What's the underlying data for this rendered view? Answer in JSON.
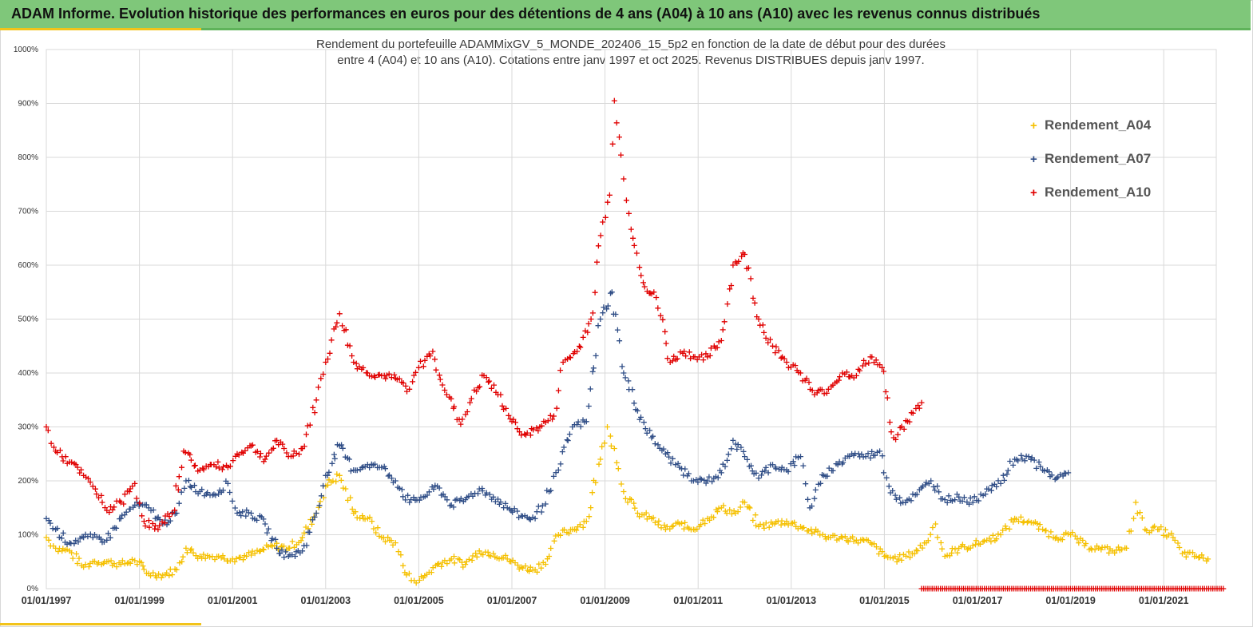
{
  "header": {
    "title": "ADAM Informe. Evolution historique des performances en euros pour des détentions de 4 ans (A04) à 10 ans (A10) avec les revenus connus distribués"
  },
  "colors": {
    "banner": "#7fc77a",
    "accent": "#f2c31a",
    "A04": "#f5c000",
    "A07": "#2f4d86",
    "A10": "#e00000",
    "grid": "#d9d9d9"
  },
  "chart_data": {
    "type": "scatter",
    "title_line1": "Rendement du portefeuille ADAMMixGV_5_MONDE_202406_15_5p2 en fonction de la date de début pour des durées",
    "title_line2": "entre 4 (A04) et 10 ans (A10). Cotations entre janv 1997 et oct 2025. Revenus DISTRIBUES depuis janv 1997.",
    "x_range": [
      1997.0,
      2022.3
    ],
    "ylim": [
      0,
      1000
    ],
    "y_ticks": [
      "0%",
      "100%",
      "200%",
      "300%",
      "400%",
      "500%",
      "600%",
      "700%",
      "800%",
      "900%",
      "1000%"
    ],
    "x_ticks": [
      {
        "year": 1997,
        "label": "01/01/1997"
      },
      {
        "year": 1999,
        "label": "01/01/1999"
      },
      {
        "year": 2001,
        "label": "01/01/2001"
      },
      {
        "year": 2003,
        "label": "01/01/2003"
      },
      {
        "year": 2005,
        "label": "01/01/2005"
      },
      {
        "year": 2007,
        "label": "01/01/2007"
      },
      {
        "year": 2009,
        "label": "01/01/2009"
      },
      {
        "year": 2011,
        "label": "01/01/2011"
      },
      {
        "year": 2013,
        "label": "01/01/2013"
      },
      {
        "year": 2015,
        "label": "01/01/2015"
      },
      {
        "year": 2017,
        "label": "01/01/2017"
      },
      {
        "year": 2019,
        "label": "01/01/2019"
      },
      {
        "year": 2021,
        "label": "01/01/2021"
      }
    ],
    "grid": true,
    "marker": "+",
    "legend_position": "top-right",
    "series": [
      {
        "name": "Rendement_A04",
        "color": "#f5c000",
        "points": [
          [
            1997.0,
            95
          ],
          [
            1997.2,
            75
          ],
          [
            1997.5,
            70
          ],
          [
            1997.8,
            40
          ],
          [
            1998.0,
            50
          ],
          [
            1998.3,
            50
          ],
          [
            1998.6,
            45
          ],
          [
            1998.9,
            52
          ],
          [
            1999.2,
            28
          ],
          [
            1999.5,
            25
          ],
          [
            1999.8,
            35
          ],
          [
            2000.0,
            75
          ],
          [
            2000.3,
            60
          ],
          [
            2000.7,
            60
          ],
          [
            2001.0,
            55
          ],
          [
            2001.3,
            60
          ],
          [
            2001.6,
            70
          ],
          [
            2001.9,
            80
          ],
          [
            2002.2,
            75
          ],
          [
            2002.5,
            95
          ],
          [
            2002.8,
            140
          ],
          [
            2003.0,
            190
          ],
          [
            2003.3,
            210
          ],
          [
            2003.6,
            140
          ],
          [
            2003.9,
            130
          ],
          [
            2004.2,
            95
          ],
          [
            2004.5,
            85
          ],
          [
            2004.7,
            30
          ],
          [
            2004.9,
            15
          ],
          [
            2005.1,
            20
          ],
          [
            2005.4,
            45
          ],
          [
            2005.7,
            55
          ],
          [
            2006.0,
            45
          ],
          [
            2006.3,
            70
          ],
          [
            2006.6,
            65
          ],
          [
            2006.9,
            55
          ],
          [
            2007.2,
            40
          ],
          [
            2007.5,
            35
          ],
          [
            2007.8,
            60
          ],
          [
            2008.0,
            100
          ],
          [
            2008.3,
            110
          ],
          [
            2008.6,
            125
          ],
          [
            2008.9,
            240
          ],
          [
            2009.05,
            300
          ],
          [
            2009.2,
            260
          ],
          [
            2009.4,
            180
          ],
          [
            2009.7,
            140
          ],
          [
            2010.0,
            130
          ],
          [
            2010.3,
            110
          ],
          [
            2010.6,
            120
          ],
          [
            2010.9,
            110
          ],
          [
            2011.2,
            130
          ],
          [
            2011.5,
            150
          ],
          [
            2011.8,
            140
          ],
          [
            2012.0,
            160
          ],
          [
            2012.3,
            115
          ],
          [
            2012.6,
            120
          ],
          [
            2012.9,
            125
          ],
          [
            2013.2,
            115
          ],
          [
            2013.5,
            105
          ],
          [
            2013.8,
            95
          ],
          [
            2014.1,
            95
          ],
          [
            2014.4,
            90
          ],
          [
            2014.7,
            85
          ],
          [
            2015.0,
            60
          ],
          [
            2015.3,
            55
          ],
          [
            2015.6,
            65
          ],
          [
            2015.9,
            85
          ],
          [
            2016.1,
            120
          ],
          [
            2016.3,
            60
          ],
          [
            2016.6,
            75
          ],
          [
            2016.9,
            80
          ],
          [
            2017.2,
            90
          ],
          [
            2017.5,
            100
          ],
          [
            2017.8,
            130
          ],
          [
            2018.1,
            125
          ],
          [
            2018.4,
            110
          ],
          [
            2018.7,
            95
          ],
          [
            2019.0,
            100
          ],
          [
            2019.3,
            80
          ],
          [
            2019.6,
            75
          ],
          [
            2019.9,
            70
          ],
          [
            2020.2,
            75
          ],
          [
            2020.4,
            160
          ],
          [
            2020.6,
            110
          ],
          [
            2020.9,
            110
          ],
          [
            2021.2,
            95
          ],
          [
            2021.4,
            65
          ],
          [
            2021.7,
            60
          ],
          [
            2021.95,
            55
          ]
        ]
      },
      {
        "name": "Rendement_A07",
        "color": "#2f4d86",
        "points": [
          [
            1997.0,
            130
          ],
          [
            1997.2,
            110
          ],
          [
            1997.5,
            85
          ],
          [
            1997.8,
            95
          ],
          [
            1998.0,
            95
          ],
          [
            1998.3,
            90
          ],
          [
            1998.6,
            130
          ],
          [
            1998.9,
            155
          ],
          [
            1999.2,
            150
          ],
          [
            1999.5,
            120
          ],
          [
            1999.8,
            140
          ],
          [
            2000.0,
            200
          ],
          [
            2000.3,
            180
          ],
          [
            2000.6,
            175
          ],
          [
            2000.9,
            195
          ],
          [
            2001.1,
            140
          ],
          [
            2001.4,
            140
          ],
          [
            2001.7,
            120
          ],
          [
            2001.95,
            75
          ],
          [
            2002.2,
            60
          ],
          [
            2002.5,
            70
          ],
          [
            2002.8,
            140
          ],
          [
            2003.0,
            210
          ],
          [
            2003.3,
            265
          ],
          [
            2003.6,
            220
          ],
          [
            2003.9,
            230
          ],
          [
            2004.2,
            225
          ],
          [
            2004.5,
            200
          ],
          [
            2004.8,
            160
          ],
          [
            2005.1,
            170
          ],
          [
            2005.4,
            190
          ],
          [
            2005.7,
            155
          ],
          [
            2006.0,
            165
          ],
          [
            2006.3,
            185
          ],
          [
            2006.6,
            170
          ],
          [
            2006.9,
            150
          ],
          [
            2007.2,
            135
          ],
          [
            2007.5,
            130
          ],
          [
            2007.8,
            180
          ],
          [
            2008.0,
            220
          ],
          [
            2008.3,
            300
          ],
          [
            2008.6,
            310
          ],
          [
            2008.9,
            500
          ],
          [
            2009.15,
            550
          ],
          [
            2009.4,
            400
          ],
          [
            2009.7,
            330
          ],
          [
            2010.0,
            280
          ],
          [
            2010.3,
            250
          ],
          [
            2010.6,
            225
          ],
          [
            2010.9,
            200
          ],
          [
            2011.2,
            200
          ],
          [
            2011.5,
            215
          ],
          [
            2011.75,
            275
          ],
          [
            2012.0,
            245
          ],
          [
            2012.3,
            205
          ],
          [
            2012.6,
            230
          ],
          [
            2012.9,
            220
          ],
          [
            2013.2,
            245
          ],
          [
            2013.4,
            150
          ],
          [
            2013.7,
            210
          ],
          [
            2014.0,
            230
          ],
          [
            2014.3,
            250
          ],
          [
            2014.6,
            245
          ],
          [
            2014.9,
            255
          ],
          [
            2015.1,
            190
          ],
          [
            2015.4,
            160
          ],
          [
            2015.7,
            175
          ],
          [
            2016.0,
            200
          ],
          [
            2016.3,
            165
          ],
          [
            2016.6,
            170
          ],
          [
            2016.9,
            160
          ],
          [
            2017.2,
            185
          ],
          [
            2017.5,
            195
          ],
          [
            2017.8,
            240
          ],
          [
            2018.1,
            245
          ],
          [
            2018.4,
            220
          ],
          [
            2018.7,
            205
          ],
          [
            2018.95,
            215
          ]
        ]
      },
      {
        "name": "Rendement_A10",
        "color": "#e00000",
        "points": [
          [
            1997.0,
            300
          ],
          [
            1997.2,
            255
          ],
          [
            1997.5,
            235
          ],
          [
            1997.8,
            210
          ],
          [
            1998.0,
            190
          ],
          [
            1998.3,
            145
          ],
          [
            1998.6,
            160
          ],
          [
            1998.9,
            195
          ],
          [
            1999.1,
            125
          ],
          [
            1999.4,
            110
          ],
          [
            1999.7,
            140
          ],
          [
            1999.95,
            255
          ],
          [
            2000.3,
            220
          ],
          [
            2000.6,
            230
          ],
          [
            2000.9,
            225
          ],
          [
            2001.1,
            250
          ],
          [
            2001.4,
            265
          ],
          [
            2001.7,
            240
          ],
          [
            2001.95,
            275
          ],
          [
            2002.2,
            245
          ],
          [
            2002.5,
            260
          ],
          [
            2002.8,
            350
          ],
          [
            2003.0,
            420
          ],
          [
            2003.3,
            510
          ],
          [
            2003.6,
            420
          ],
          [
            2003.9,
            400
          ],
          [
            2004.2,
            395
          ],
          [
            2004.5,
            390
          ],
          [
            2004.8,
            370
          ],
          [
            2005.0,
            410
          ],
          [
            2005.3,
            440
          ],
          [
            2005.6,
            360
          ],
          [
            2005.9,
            305
          ],
          [
            2006.1,
            345
          ],
          [
            2006.4,
            395
          ],
          [
            2006.7,
            360
          ],
          [
            2007.0,
            310
          ],
          [
            2007.3,
            285
          ],
          [
            2007.6,
            300
          ],
          [
            2007.9,
            320
          ],
          [
            2008.1,
            420
          ],
          [
            2008.4,
            440
          ],
          [
            2008.7,
            500
          ],
          [
            2008.95,
            680
          ],
          [
            2009.1,
            730
          ],
          [
            2009.2,
            905
          ],
          [
            2009.4,
            760
          ],
          [
            2009.6,
            650
          ],
          [
            2009.85,
            560
          ],
          [
            2010.1,
            540
          ],
          [
            2010.4,
            420
          ],
          [
            2010.7,
            440
          ],
          [
            2010.9,
            430
          ],
          [
            2011.2,
            430
          ],
          [
            2011.5,
            460
          ],
          [
            2011.75,
            600
          ],
          [
            2012.0,
            620
          ],
          [
            2012.3,
            500
          ],
          [
            2012.6,
            450
          ],
          [
            2012.9,
            420
          ],
          [
            2013.2,
            400
          ],
          [
            2013.5,
            360
          ],
          [
            2013.8,
            370
          ],
          [
            2014.1,
            400
          ],
          [
            2014.4,
            395
          ],
          [
            2014.7,
            430
          ],
          [
            2014.95,
            410
          ],
          [
            2015.2,
            280
          ],
          [
            2015.5,
            310
          ],
          [
            2015.8,
            345
          ]
        ]
      },
      {
        "name": "Rendement_A10_baseline",
        "color": "#e00000",
        "legend": false,
        "x_from": 2015.8,
        "x_to": 2022.3,
        "value": 0
      }
    ]
  }
}
